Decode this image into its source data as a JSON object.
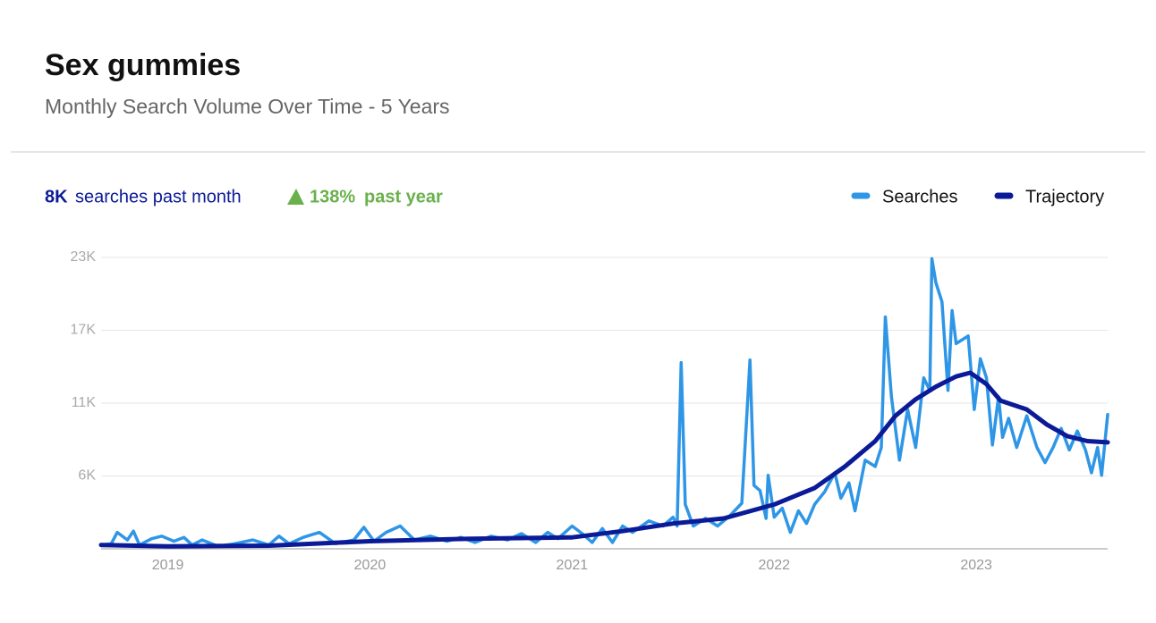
{
  "chart_data": {
    "type": "line",
    "title": "Sex gummies",
    "subtitle": "Monthly Search  Volume Over  Time -  5 Years",
    "stats": {
      "month_value": "8K",
      "month_label": "searches past month",
      "growth_value": "138%",
      "growth_label": "past year",
      "growth_color": "#6ab04c"
    },
    "xlim": [
      2018.67,
      2023.65
    ],
    "xticks": [
      2019,
      2020,
      2021,
      2022,
      2023
    ],
    "ylim": [
      0,
      23000
    ],
    "yticks": [
      {
        "value": 5750,
        "label": "6K"
      },
      {
        "value": 11500,
        "label": "11K"
      },
      {
        "value": 17250,
        "label": "17K"
      },
      {
        "value": 23000,
        "label": "23K"
      }
    ],
    "grid": true,
    "legend": "top-right",
    "series": [
      {
        "name": "Searches",
        "color": "#2f96e6",
        "width": 3.5,
        "x": [
          2018.67,
          2018.72,
          2018.75,
          2018.8,
          2018.83,
          2018.86,
          2018.92,
          2018.97,
          2019.03,
          2019.08,
          2019.12,
          2019.17,
          2019.25,
          2019.33,
          2019.42,
          2019.5,
          2019.55,
          2019.6,
          2019.67,
          2019.75,
          2019.83,
          2019.92,
          2019.97,
          2020.02,
          2020.08,
          2020.15,
          2020.22,
          2020.3,
          2020.38,
          2020.45,
          2020.52,
          2020.6,
          2020.68,
          2020.75,
          2020.82,
          2020.88,
          2020.93,
          2021.0,
          2021.05,
          2021.1,
          2021.15,
          2021.2,
          2021.25,
          2021.3,
          2021.38,
          2021.45,
          2021.5,
          2021.52,
          2021.54,
          2021.56,
          2021.6,
          2021.66,
          2021.72,
          2021.78,
          2021.84,
          2021.88,
          2021.9,
          2021.93,
          2021.96,
          2021.97,
          2022.0,
          2022.04,
          2022.08,
          2022.12,
          2022.16,
          2022.2,
          2022.25,
          2022.3,
          2022.33,
          2022.37,
          2022.4,
          2022.45,
          2022.5,
          2022.53,
          2022.55,
          2022.58,
          2022.62,
          2022.66,
          2022.7,
          2022.74,
          2022.77,
          2022.78,
          2022.8,
          2022.83,
          2022.86,
          2022.88,
          2022.9,
          2022.93,
          2022.96,
          2022.99,
          2023.02,
          2023.05,
          2023.08,
          2023.11,
          2023.13,
          2023.16,
          2023.2,
          2023.25,
          2023.3,
          2023.34,
          2023.38,
          2023.42,
          2023.46,
          2023.5,
          2023.54,
          2023.57,
          2023.6,
          2023.62,
          2023.65
        ],
        "values": [
          300,
          400,
          1300,
          700,
          1400,
          300,
          800,
          1000,
          600,
          900,
          300,
          700,
          200,
          400,
          700,
          300,
          1000,
          400,
          900,
          1300,
          400,
          700,
          1700,
          600,
          1300,
          1800,
          700,
          1000,
          600,
          900,
          500,
          1000,
          700,
          1200,
          500,
          1300,
          800,
          1800,
          1200,
          500,
          1600,
          500,
          1800,
          1300,
          2200,
          1800,
          2500,
          1800,
          14700,
          3500,
          1800,
          2400,
          1800,
          2600,
          3600,
          14900,
          5000,
          4600,
          2400,
          5800,
          2500,
          3200,
          1300,
          3000,
          2000,
          3500,
          4500,
          6000,
          4000,
          5200,
          3000,
          7000,
          6500,
          8000,
          18300,
          12000,
          7000,
          11000,
          8000,
          13500,
          12500,
          22900,
          21000,
          19500,
          12500,
          18800,
          16200,
          16500,
          16800,
          11000,
          15000,
          13500,
          8200,
          12000,
          8800,
          10300,
          8000,
          10500,
          8000,
          6800,
          8000,
          9500,
          7800,
          9300,
          7800,
          6000,
          8000,
          5800,
          10600
        ]
      },
      {
        "name": "Trajectory",
        "color": "#0b1a96",
        "width": 5,
        "x": [
          2018.67,
          2019.0,
          2019.5,
          2020.0,
          2020.5,
          2021.0,
          2021.25,
          2021.5,
          2021.75,
          2022.0,
          2022.2,
          2022.35,
          2022.5,
          2022.6,
          2022.7,
          2022.8,
          2022.9,
          2022.97,
          2023.05,
          2023.12,
          2023.25,
          2023.35,
          2023.45,
          2023.55,
          2023.65
        ],
        "values": [
          300,
          200,
          250,
          600,
          800,
          900,
          1400,
          2000,
          2400,
          3500,
          4800,
          6500,
          8500,
          10500,
          11800,
          12800,
          13600,
          13900,
          13000,
          11700,
          11000,
          9800,
          8900,
          8500,
          8400
        ]
      }
    ]
  }
}
